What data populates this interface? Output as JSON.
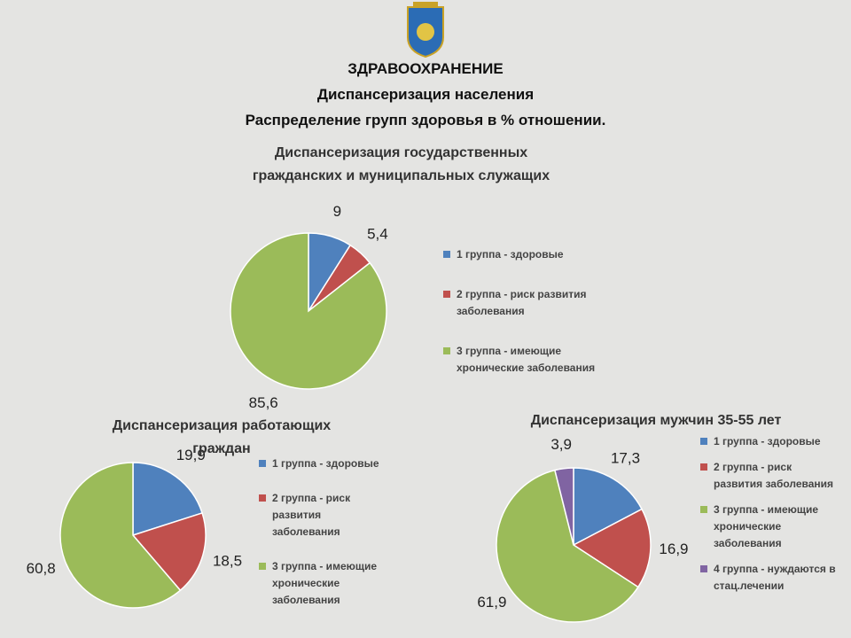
{
  "header": {
    "lines": [
      "ЗДРАВООХРАНЕНИЕ",
      "Диспансеризация населения",
      "Распределение групп здоровья в % отношении."
    ]
  },
  "chart_data": [
    {
      "type": "pie",
      "title": "Диспансеризация государственных гражданских и муниципальных служащих",
      "categories": [
        "1 группа - здоровые",
        "2 группа - риск развития заболевания",
        "3 группа - имеющие хронические заболевания"
      ],
      "values": [
        9,
        5.4,
        85.6
      ],
      "value_labels": [
        "9",
        "5,4",
        "85,6"
      ],
      "colors": [
        "#4f81bd",
        "#c0504d",
        "#9bbb59"
      ]
    },
    {
      "type": "pie",
      "title": "Диспансеризация работающих граждан",
      "categories": [
        "1 группа - здоровые",
        "2 группа - риск развития заболевания",
        "3 группа - имеющие хронические заболевания"
      ],
      "values": [
        19.9,
        18.5,
        60.8
      ],
      "value_labels": [
        "19,9",
        "18,5",
        "60,8"
      ],
      "colors": [
        "#4f81bd",
        "#c0504d",
        "#9bbb59"
      ]
    },
    {
      "type": "pie",
      "title": "Диспансеризация мужчин 35-55 лет",
      "categories": [
        "1 группа - здоровые",
        "2 группа - риск развития заболевания",
        "3 группа - имеющие хронические заболевания",
        "4 группа - нуждаются в стац.лечении"
      ],
      "values": [
        17.3,
        16.9,
        61.9,
        3.9
      ],
      "value_labels": [
        "17,3",
        "16,9",
        "61,9",
        "3,9"
      ],
      "colors": [
        "#4f81bd",
        "#c0504d",
        "#9bbb59",
        "#8064a2"
      ]
    }
  ]
}
